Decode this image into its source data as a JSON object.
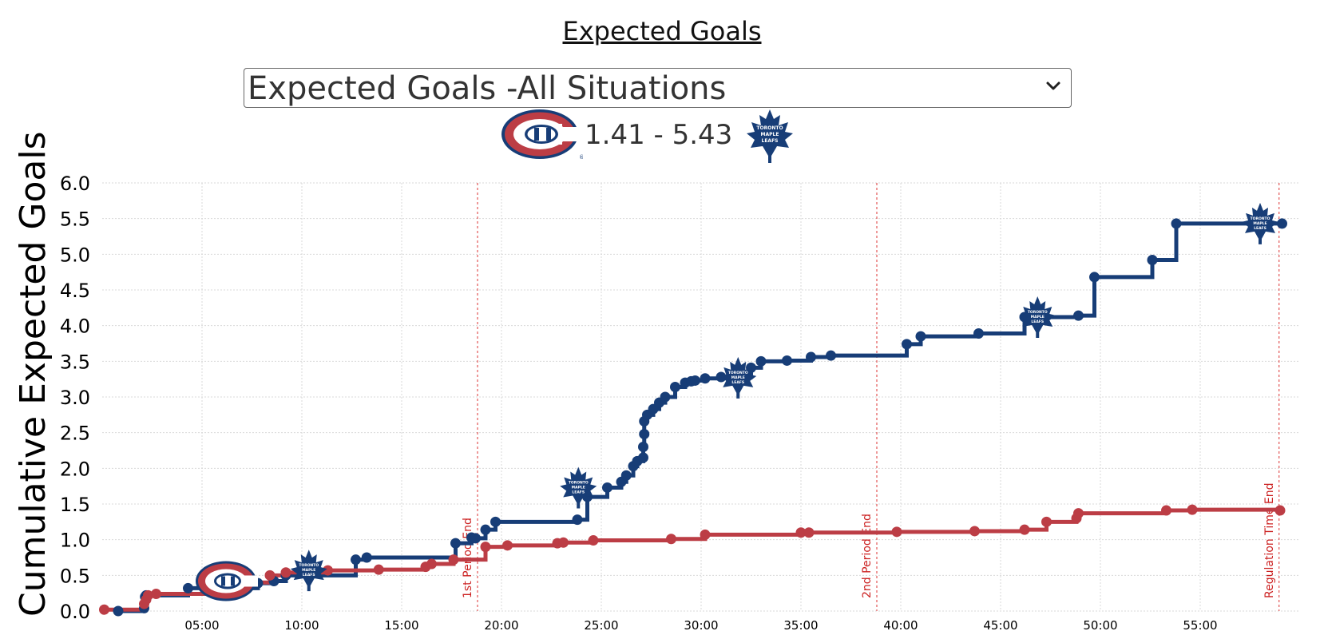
{
  "page_title": "Expected Goals",
  "selector": {
    "value": "Expected Goals -All Situations"
  },
  "score": {
    "text": "1.41 - 5.43",
    "home": 1.41,
    "away": 5.43
  },
  "teams": {
    "home": {
      "logo": "canadiens-logo",
      "color": "#BC3D45"
    },
    "away": {
      "logo": "maple-leafs-logo",
      "color": "#173D77"
    }
  },
  "chart_data": {
    "type": "line",
    "step": true,
    "ylabel": "Cumulative Expected Goals",
    "xlabel": "",
    "xlim_minutes": [
      0,
      60
    ],
    "ylim": [
      0,
      6
    ],
    "yticks": [
      "0.0",
      "0.5",
      "1.0",
      "1.5",
      "2.0",
      "2.5",
      "3.0",
      "3.5",
      "4.0",
      "4.5",
      "5.0",
      "5.5",
      "6.0"
    ],
    "xticks": [
      "05:00",
      "10:00",
      "15:00",
      "20:00",
      "25:00",
      "30:00",
      "35:00",
      "40:00",
      "45:00",
      "50:00",
      "55:00"
    ],
    "xtick_minutes": [
      5,
      10,
      15,
      20,
      25,
      30,
      35,
      40,
      45,
      50,
      55
    ],
    "grid": true,
    "period_markers": [
      {
        "label": "1st Period End",
        "minute": 18.8
      },
      {
        "label": "2nd Period End",
        "minute": 38.8
      },
      {
        "label": "Regulation Time End",
        "minute": 58.95
      }
    ],
    "series": [
      {
        "team": "away",
        "color": "#173D77",
        "x": [
          0.8,
          2.1,
          2.15,
          2.2,
          4.3,
          7.8,
          8.6,
          9.2,
          12.7,
          13.25,
          17.7,
          18.5,
          18.7,
          19.2,
          19.7,
          23.8,
          24.3,
          25.3,
          26.0,
          26.25,
          26.6,
          26.8,
          27.1,
          27.1,
          27.15,
          27.15,
          27.3,
          27.6,
          27.9,
          28.2,
          28.7,
          29.2,
          29.5,
          29.7,
          30.2,
          31.0,
          32.5,
          33.0,
          34.3,
          35.5,
          36.5,
          40.3,
          41.0,
          43.9,
          46.2,
          48.9,
          49.7,
          52.6,
          53.8,
          59.1
        ],
        "values": [
          0.0,
          0.04,
          0.2,
          0.22,
          0.32,
          0.39,
          0.42,
          0.5,
          0.72,
          0.75,
          0.95,
          1.03,
          1.02,
          1.14,
          1.25,
          1.28,
          1.6,
          1.73,
          1.81,
          1.9,
          2.03,
          2.1,
          2.15,
          2.3,
          2.48,
          2.66,
          2.75,
          2.83,
          2.92,
          3.0,
          3.14,
          3.2,
          3.22,
          3.23,
          3.26,
          3.28,
          3.41,
          3.5,
          3.51,
          3.56,
          3.58,
          3.74,
          3.85,
          3.89,
          4.12,
          4.14,
          4.68,
          4.92,
          5.43,
          5.43
        ]
      },
      {
        "team": "home",
        "color": "#BC3D45",
        "x": [
          0.1,
          2.1,
          2.2,
          2.3,
          2.7,
          5.2,
          8.4,
          9.2,
          11.3,
          13.85,
          16.2,
          16.5,
          17.6,
          19.2,
          20.3,
          22.8,
          23.1,
          24.6,
          28.5,
          30.2,
          35.0,
          35.4,
          39.8,
          43.7,
          46.2,
          47.3,
          48.8,
          48.9,
          53.3,
          54.6,
          59.0
        ],
        "values": [
          0.02,
          0.1,
          0.16,
          0.22,
          0.24,
          0.4,
          0.5,
          0.54,
          0.57,
          0.58,
          0.62,
          0.66,
          0.72,
          0.9,
          0.92,
          0.95,
          0.96,
          0.99,
          1.01,
          1.07,
          1.1,
          1.1,
          1.11,
          1.12,
          1.14,
          1.25,
          1.3,
          1.37,
          1.41,
          1.42,
          1.41
        ]
      }
    ],
    "goals": [
      {
        "team": "home",
        "minute": 6.2,
        "value": 0.42
      },
      {
        "team": "away",
        "minute": 10.35,
        "value": 0.57
      },
      {
        "team": "away",
        "minute": 23.85,
        "value": 1.73
      },
      {
        "team": "away",
        "minute": 31.85,
        "value": 3.27
      },
      {
        "team": "away",
        "minute": 46.85,
        "value": 4.12
      },
      {
        "team": "away",
        "minute": 58.0,
        "value": 5.43
      }
    ]
  }
}
